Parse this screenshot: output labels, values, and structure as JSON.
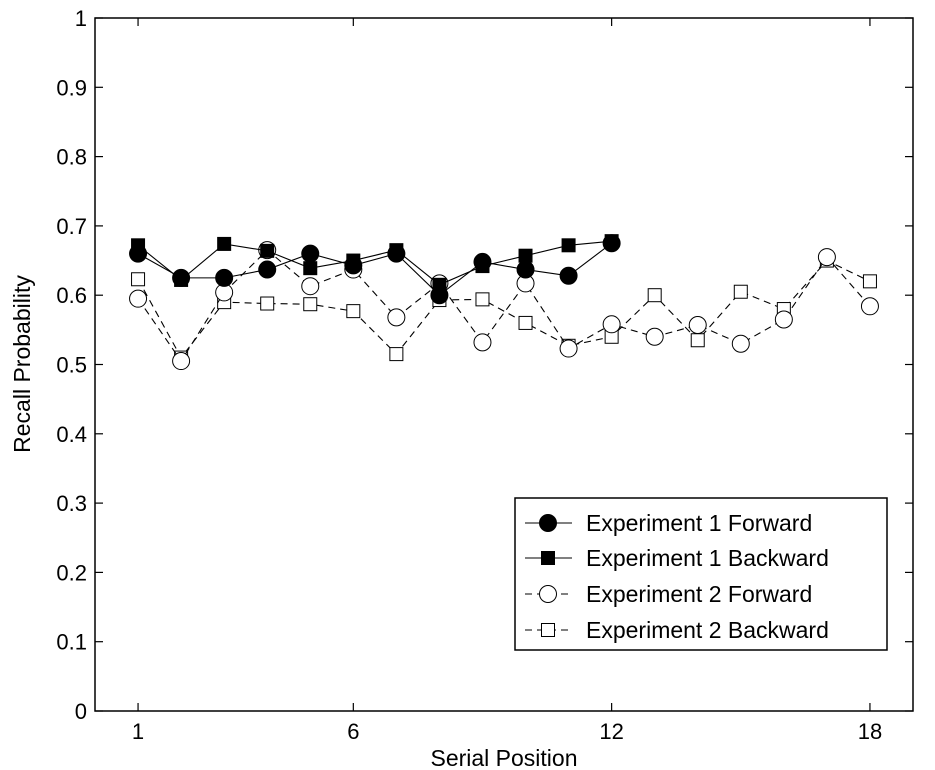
{
  "chart_data": {
    "type": "line",
    "title": "",
    "xlabel": "Serial Position",
    "ylabel": "Recall Probability",
    "xlim": [
      0,
      19
    ],
    "ylim": [
      0,
      1
    ],
    "xticks": [
      1,
      6,
      12,
      18
    ],
    "yticks": [
      0,
      0.1,
      0.2,
      0.3,
      0.4,
      0.5,
      0.6,
      0.7,
      0.8,
      0.9,
      1
    ],
    "ytick_labels": [
      "0",
      "0.1",
      "0.2",
      "0.3",
      "0.4",
      "0.5",
      "0.6",
      "0.7",
      "0.8",
      "0.9",
      "1"
    ],
    "grid": false,
    "legend_position": "bottom-right",
    "series": [
      {
        "name": "Experiment 1 Forward",
        "marker": "filled-circle",
        "line": "solid",
        "x": [
          1,
          2,
          3,
          4,
          5,
          6,
          7,
          8,
          9,
          10,
          11,
          12
        ],
        "values": [
          0.66,
          0.625,
          0.625,
          0.637,
          0.66,
          0.643,
          0.66,
          0.6,
          0.648,
          0.637,
          0.628,
          0.675
        ]
      },
      {
        "name": "Experiment 1 Backward",
        "marker": "filled-square",
        "line": "solid",
        "x": [
          1,
          2,
          3,
          4,
          5,
          6,
          7,
          8,
          9,
          10,
          11,
          12
        ],
        "values": [
          0.672,
          0.622,
          0.674,
          0.664,
          0.639,
          0.65,
          0.665,
          0.615,
          0.642,
          0.657,
          0.672,
          0.678
        ]
      },
      {
        "name": "Experiment 2 Forward",
        "marker": "open-circle",
        "line": "dashed",
        "x": [
          1,
          2,
          3,
          4,
          5,
          6,
          7,
          8,
          9,
          10,
          11,
          12,
          13,
          14,
          15,
          16,
          17,
          18
        ],
        "values": [
          0.595,
          0.505,
          0.604,
          0.665,
          0.613,
          0.637,
          0.568,
          0.617,
          0.532,
          0.617,
          0.523,
          0.558,
          0.54,
          0.557,
          0.53,
          0.565,
          0.655,
          0.584
        ]
      },
      {
        "name": "Experiment 2 Backward",
        "marker": "open-square",
        "line": "dashed",
        "x": [
          1,
          2,
          3,
          4,
          5,
          6,
          7,
          8,
          9,
          10,
          11,
          12,
          13,
          14,
          15,
          16,
          17,
          18
        ],
        "values": [
          0.623,
          0.51,
          0.59,
          0.588,
          0.587,
          0.577,
          0.515,
          0.593,
          0.594,
          0.56,
          0.527,
          0.54,
          0.6,
          0.535,
          0.605,
          0.58,
          0.65,
          0.62
        ]
      }
    ]
  }
}
